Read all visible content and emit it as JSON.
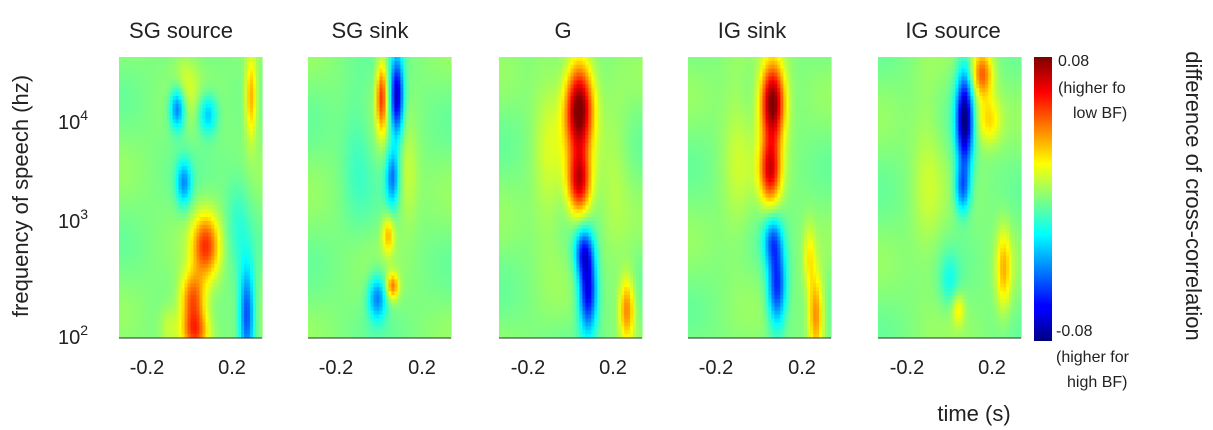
{
  "chart_data": {
    "type": "heatmap",
    "panels": [
      {
        "title": "SG source",
        "blobs": [
          {
            "t": -0.06,
            "f": 4.0,
            "st": 0.025,
            "sf": 0.13,
            "v": -0.045
          },
          {
            "t": -0.03,
            "f": 3.35,
            "st": 0.025,
            "sf": 0.14,
            "v": -0.035
          },
          {
            "t": 0.08,
            "f": 3.95,
            "st": 0.03,
            "sf": 0.12,
            "v": -0.03
          },
          {
            "t": 0.07,
            "f": 2.8,
            "st": 0.045,
            "sf": 0.2,
            "v": 0.05
          },
          {
            "t": 0.01,
            "f": 2.35,
            "st": 0.04,
            "sf": 0.16,
            "v": 0.045
          },
          {
            "t": 0.02,
            "f": 2.05,
            "st": 0.045,
            "sf": 0.14,
            "v": 0.05
          },
          {
            "t": 0.26,
            "f": 2.2,
            "st": 0.025,
            "sf": 0.3,
            "v": -0.05
          },
          {
            "t": 0.28,
            "f": 4.1,
            "st": 0.02,
            "sf": 0.25,
            "v": 0.035
          },
          {
            "t": 0.22,
            "f": 3.0,
            "st": 0.04,
            "sf": 0.3,
            "v": -0.012
          },
          {
            "t": -0.1,
            "f": 2.1,
            "st": 0.03,
            "sf": 0.14,
            "v": 0.012
          },
          {
            "t": -0.02,
            "f": 4.2,
            "st": 0.04,
            "sf": 0.2,
            "v": 0.012
          }
        ]
      },
      {
        "title": "SG sink",
        "blobs": [
          {
            "t": 0.08,
            "f": 4.1,
            "st": 0.022,
            "sf": 0.25,
            "v": -0.07
          },
          {
            "t": 0.06,
            "f": 3.4,
            "st": 0.022,
            "sf": 0.18,
            "v": -0.04
          },
          {
            "t": 0.01,
            "f": 4.1,
            "st": 0.018,
            "sf": 0.22,
            "v": 0.05
          },
          {
            "t": 0.04,
            "f": 2.9,
            "st": 0.02,
            "sf": 0.12,
            "v": 0.03
          },
          {
            "t": 0.06,
            "f": 2.45,
            "st": 0.02,
            "sf": 0.08,
            "v": 0.04
          },
          {
            "t": -0.01,
            "f": 2.35,
            "st": 0.03,
            "sf": 0.14,
            "v": -0.04
          },
          {
            "t": 0.13,
            "f": 3.4,
            "st": 0.035,
            "sf": 0.3,
            "v": 0.012
          },
          {
            "t": -0.1,
            "f": 3.6,
            "st": 0.05,
            "sf": 0.4,
            "v": -0.01
          }
        ]
      },
      {
        "title": "G",
        "blobs": [
          {
            "t": 0.04,
            "f": 4.0,
            "st": 0.045,
            "sf": 0.28,
            "v": 0.085
          },
          {
            "t": 0.04,
            "f": 3.35,
            "st": 0.038,
            "sf": 0.2,
            "v": 0.065
          },
          {
            "t": 0.08,
            "f": 2.4,
            "st": 0.03,
            "sf": 0.25,
            "v": -0.065
          },
          {
            "t": 0.06,
            "f": 2.75,
            "st": 0.03,
            "sf": 0.15,
            "v": -0.045
          },
          {
            "t": 0.26,
            "f": 2.25,
            "st": 0.025,
            "sf": 0.2,
            "v": 0.04
          },
          {
            "t": -0.1,
            "f": 3.6,
            "st": 0.05,
            "sf": 0.6,
            "v": 0.012
          },
          {
            "t": 0.2,
            "f": 3.4,
            "st": 0.05,
            "sf": 0.5,
            "v": 0.008
          }
        ]
      },
      {
        "title": "IG sink",
        "blobs": [
          {
            "t": 0.06,
            "f": 4.05,
            "st": 0.04,
            "sf": 0.25,
            "v": 0.085
          },
          {
            "t": 0.05,
            "f": 3.45,
            "st": 0.035,
            "sf": 0.2,
            "v": 0.06
          },
          {
            "t": 0.08,
            "f": 2.45,
            "st": 0.03,
            "sf": 0.25,
            "v": -0.055
          },
          {
            "t": 0.06,
            "f": 2.85,
            "st": 0.03,
            "sf": 0.15,
            "v": -0.035
          },
          {
            "t": 0.26,
            "f": 2.2,
            "st": 0.025,
            "sf": 0.25,
            "v": 0.04
          },
          {
            "t": 0.23,
            "f": 2.7,
            "st": 0.02,
            "sf": 0.2,
            "v": 0.02
          },
          {
            "t": -0.1,
            "f": 3.6,
            "st": 0.05,
            "sf": 0.6,
            "v": 0.01
          }
        ]
      },
      {
        "title": "IG source",
        "blobs": [
          {
            "t": 0.07,
            "f": 3.9,
            "st": 0.028,
            "sf": 0.3,
            "v": -0.08
          },
          {
            "t": 0.06,
            "f": 3.3,
            "st": 0.025,
            "sf": 0.15,
            "v": -0.04
          },
          {
            "t": 0.15,
            "f": 4.3,
            "st": 0.035,
            "sf": 0.15,
            "v": 0.045
          },
          {
            "t": 0.18,
            "f": 3.9,
            "st": 0.04,
            "sf": 0.15,
            "v": 0.025
          },
          {
            "t": 0.25,
            "f": 2.6,
            "st": 0.025,
            "sf": 0.25,
            "v": 0.03
          },
          {
            "t": 0.04,
            "f": 2.25,
            "st": 0.02,
            "sf": 0.1,
            "v": 0.02
          },
          {
            "t": 0.0,
            "f": 2.5,
            "st": 0.03,
            "sf": 0.15,
            "v": -0.015
          },
          {
            "t": -0.1,
            "f": 3.4,
            "st": 0.05,
            "sf": 0.6,
            "v": 0.01
          }
        ]
      }
    ],
    "xlim": [
      -0.33,
      0.33
    ],
    "ylim_log10": [
      2.0,
      4.45
    ],
    "xticks": [
      {
        "value": -0.2,
        "label": "-0.2"
      },
      {
        "value": 0.2,
        "label": "0.2"
      }
    ],
    "yticks": [
      {
        "exp": 4,
        "base": "10",
        "sup": "4"
      },
      {
        "exp": 3,
        "base": "10",
        "sup": "3"
      },
      {
        "exp": 2,
        "base": "10",
        "sup": "2"
      }
    ],
    "xlabel": "time (s)",
    "ylabel": "frequency of speech (hz)",
    "colorbar": {
      "min": -0.08,
      "max": 0.08,
      "max_label": "0.08",
      "max_note": [
        "(higher fo",
        "low BF)"
      ],
      "min_label": "-0.08",
      "min_note": [
        "(higher for",
        "high BF)"
      ],
      "label": "difference of cross-correlation",
      "colormap": "jet"
    }
  }
}
